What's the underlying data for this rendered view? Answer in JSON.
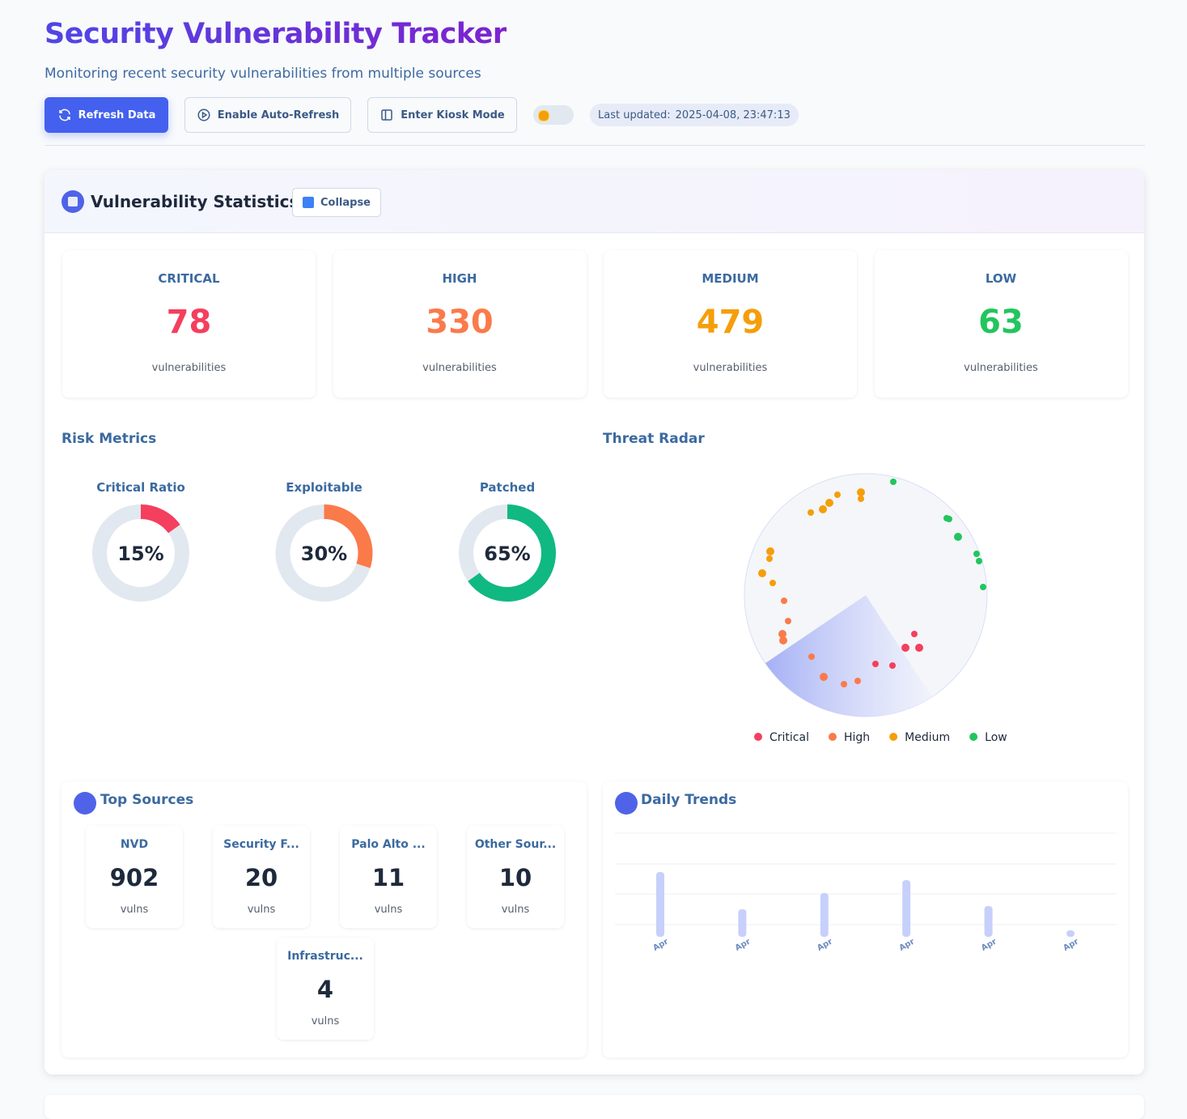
{
  "header": {
    "title": "Security Vulnerability Tracker",
    "subtitle": "Monitoring recent security vulnerabilities from multiple sources",
    "buttons": [
      "Refresh Data",
      "Enable Auto-Refresh",
      "Enter Kiosk Mode"
    ],
    "last_updated_label": "Last updated:",
    "last_updated": "2025-04-08, 23:47:13"
  },
  "stats_panel": {
    "title": "Vulnerability Statistics",
    "collapse": "Collapse",
    "cards": [
      {
        "label": "CRITICAL",
        "value": 78,
        "unit": "vulnerabilities",
        "color": "#f43f5e"
      },
      {
        "label": "HIGH",
        "value": 330,
        "unit": "vulnerabilities",
        "color": "#fb7a4a"
      },
      {
        "label": "MEDIUM",
        "value": 479,
        "unit": "vulnerabilities",
        "color": "#f59e0b"
      },
      {
        "label": "LOW",
        "value": 63,
        "unit": "vulnerabilities",
        "color": "#22c55e"
      }
    ]
  },
  "risk_metrics": {
    "title": "Risk Metrics",
    "items": [
      {
        "label": "Critical Ratio",
        "value": {
          "value": 15,
          "label": "15%"
        },
        "color": "#f43f5e"
      },
      {
        "label": "Exploitable",
        "value": {
          "value": 30,
          "label": "30%"
        },
        "color": "#fb7a4a"
      },
      {
        "label": "Patched",
        "value": {
          "value": 65,
          "label": "65%"
        },
        "color": "#10b981"
      }
    ]
  },
  "threat_radar": {
    "title": "Threat Radar",
    "legend": [
      {
        "name": "Critical",
        "color": "#f43f5e"
      },
      {
        "name": "High",
        "color": "#fb7a4a"
      },
      {
        "name": "Medium",
        "color": "#f59e0b"
      },
      {
        "name": "Low",
        "color": "#22c55e"
      }
    ]
  },
  "top_sources": {
    "title": "Top Sources",
    "sources": [
      {
        "name": "NVD",
        "count": 902,
        "unit": "vulns"
      },
      {
        "name": "Security F...",
        "count": 20,
        "unit": "vulns"
      },
      {
        "name": "Palo Alto ...",
        "count": 11,
        "unit": "vulns"
      },
      {
        "name": "Other Sour...",
        "count": 10,
        "unit": "vulns"
      },
      {
        "name": "Infrastruc...",
        "count": 4,
        "unit": "vulns"
      }
    ]
  },
  "daily_trends": {
    "title": "Daily Trends",
    "categories": [
      "Apr",
      "Apr",
      "Apr",
      "Apr",
      "Apr",
      "Apr"
    ],
    "values": [
      80,
      34,
      54,
      70,
      38,
      8
    ],
    "color": "#c7d0fb"
  }
}
